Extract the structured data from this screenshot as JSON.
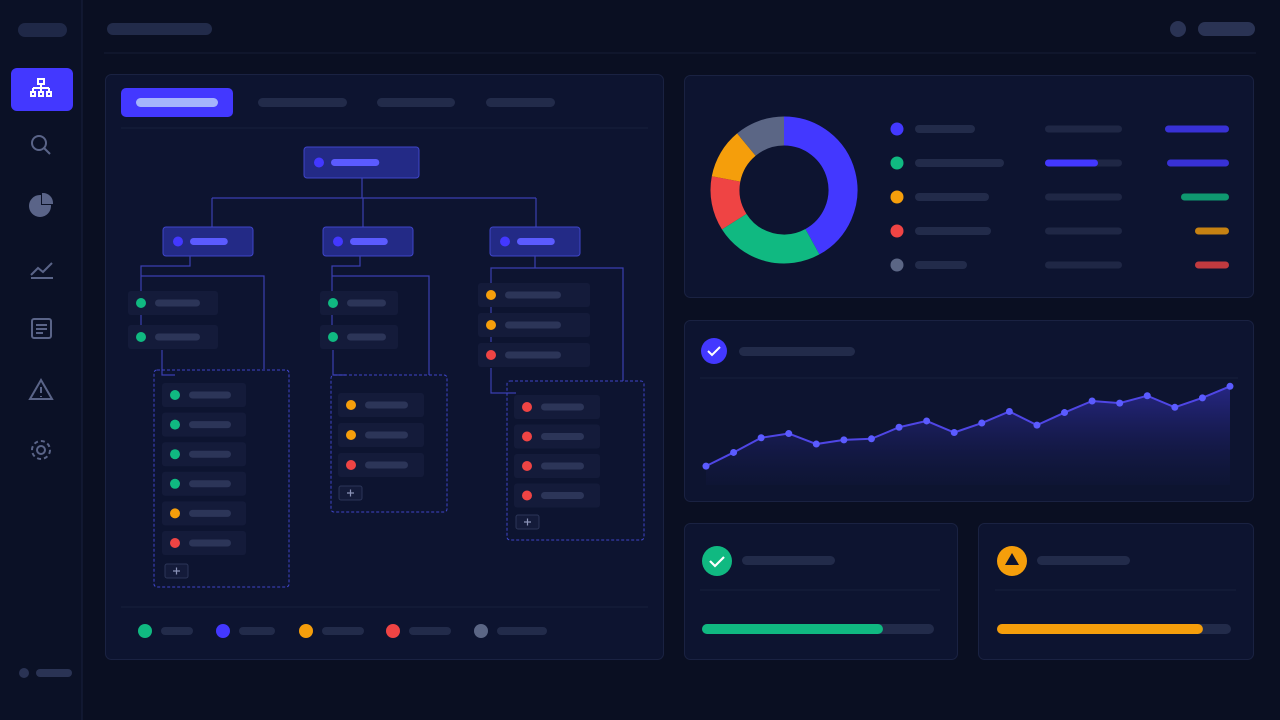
{
  "donut": {
    "values": [
      42,
      24,
      12,
      11,
      11
    ],
    "colors": [
      "#4338ff",
      "#10b981",
      "#ef4444",
      "#f59e0b",
      "#5b6685"
    ]
  },
  "line": {
    "values": [
      18,
      31,
      45,
      49,
      39,
      43,
      44,
      55,
      61,
      50,
      59,
      70,
      57,
      69,
      80,
      78,
      85,
      74,
      83,
      94
    ],
    "ylim": [
      0,
      100
    ],
    "color": "#4f46e5"
  },
  "progress": [
    {
      "value": 78,
      "color": "#10b981"
    },
    {
      "value": 88,
      "color": "#f59e0b"
    }
  ]
}
